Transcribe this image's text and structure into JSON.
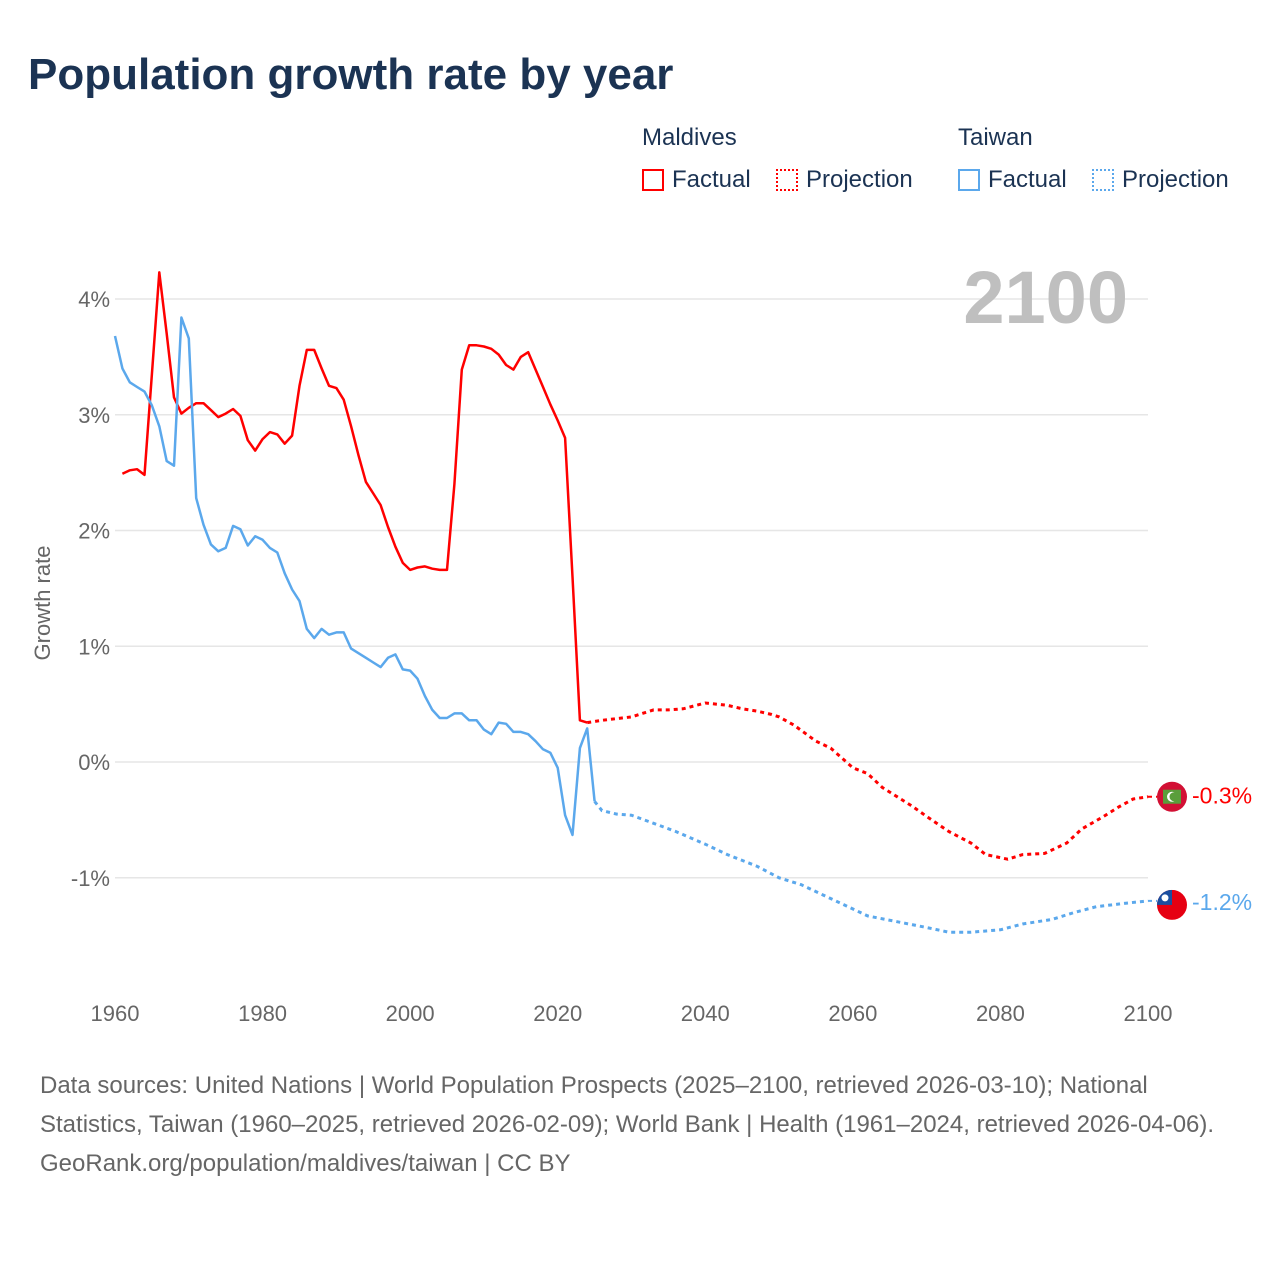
{
  "chart_data": {
    "type": "line",
    "title": "Population growth rate by year",
    "xlabel": "",
    "ylabel": "Growth rate",
    "xlim": [
      1960,
      2100
    ],
    "ylim": [
      -2,
      4.5
    ],
    "x_ticks": [
      "1960",
      "1980",
      "2000",
      "2020",
      "2040",
      "2060",
      "2080",
      "2100"
    ],
    "y_ticks": [
      {
        "v": 4,
        "label": "4%"
      },
      {
        "v": 3,
        "label": "3%"
      },
      {
        "v": 2,
        "label": "2%"
      },
      {
        "v": 1,
        "label": "1%"
      },
      {
        "v": 0,
        "label": "0%"
      },
      {
        "v": -1,
        "label": "-1%"
      }
    ],
    "current_year": "2100",
    "legend": {
      "placement": "top-right",
      "groups": [
        {
          "name": "Maldives",
          "factual": "Factual",
          "projection": "Projection"
        },
        {
          "name": "Taiwan",
          "factual": "Factual",
          "projection": "Projection"
        }
      ]
    },
    "series": [
      {
        "name": "Maldives",
        "color": "#ff0000",
        "end_label": "-0.3%",
        "factual": [
          [
            1961,
            2.49
          ],
          [
            1962,
            2.52
          ],
          [
            1963,
            2.53
          ],
          [
            1964,
            2.48
          ],
          [
            1965,
            3.35
          ],
          [
            1966,
            4.23
          ],
          [
            1967,
            3.7
          ],
          [
            1968,
            3.15
          ],
          [
            1969,
            3.01
          ],
          [
            1970,
            3.06
          ],
          [
            1971,
            3.1
          ],
          [
            1972,
            3.1
          ],
          [
            1973,
            3.04
          ],
          [
            1974,
            2.98
          ],
          [
            1975,
            3.01
          ],
          [
            1976,
            3.05
          ],
          [
            1977,
            2.99
          ],
          [
            1978,
            2.78
          ],
          [
            1979,
            2.69
          ],
          [
            1980,
            2.79
          ],
          [
            1981,
            2.85
          ],
          [
            1982,
            2.83
          ],
          [
            1983,
            2.75
          ],
          [
            1984,
            2.82
          ],
          [
            1985,
            3.25
          ],
          [
            1986,
            3.56
          ],
          [
            1987,
            3.56
          ],
          [
            1988,
            3.4
          ],
          [
            1989,
            3.25
          ],
          [
            1990,
            3.23
          ],
          [
            1991,
            3.13
          ],
          [
            1992,
            2.9
          ],
          [
            1993,
            2.65
          ],
          [
            1994,
            2.42
          ],
          [
            1995,
            2.32
          ],
          [
            1996,
            2.22
          ],
          [
            1997,
            2.03
          ],
          [
            1998,
            1.86
          ],
          [
            1999,
            1.72
          ],
          [
            2000,
            1.66
          ],
          [
            2001,
            1.68
          ],
          [
            2002,
            1.69
          ],
          [
            2003,
            1.67
          ],
          [
            2004,
            1.66
          ],
          [
            2005,
            1.66
          ],
          [
            2006,
            2.4
          ],
          [
            2007,
            3.39
          ],
          [
            2008,
            3.6
          ],
          [
            2009,
            3.6
          ],
          [
            2010,
            3.59
          ],
          [
            2011,
            3.57
          ],
          [
            2012,
            3.52
          ],
          [
            2013,
            3.43
          ],
          [
            2014,
            3.39
          ],
          [
            2015,
            3.5
          ],
          [
            2016,
            3.54
          ],
          [
            2017,
            3.39
          ],
          [
            2018,
            3.24
          ],
          [
            2019,
            3.09
          ],
          [
            2020,
            2.95
          ],
          [
            2021,
            2.8
          ],
          [
            2022,
            1.6
          ],
          [
            2023,
            0.36
          ],
          [
            2024,
            0.34
          ]
        ],
        "projection": [
          [
            2024,
            0.34
          ],
          [
            2026,
            0.36
          ],
          [
            2030,
            0.39
          ],
          [
            2033,
            0.45
          ],
          [
            2035,
            0.45
          ],
          [
            2037,
            0.46
          ],
          [
            2040,
            0.51
          ],
          [
            2043,
            0.49
          ],
          [
            2045,
            0.46
          ],
          [
            2047,
            0.44
          ],
          [
            2049,
            0.41
          ],
          [
            2050,
            0.39
          ],
          [
            2052,
            0.32
          ],
          [
            2055,
            0.18
          ],
          [
            2057,
            0.12
          ],
          [
            2060,
            -0.05
          ],
          [
            2062,
            -0.1
          ],
          [
            2064,
            -0.22
          ],
          [
            2066,
            -0.3
          ],
          [
            2068,
            -0.38
          ],
          [
            2070,
            -0.47
          ],
          [
            2073,
            -0.6
          ],
          [
            2076,
            -0.7
          ],
          [
            2078,
            -0.8
          ],
          [
            2081,
            -0.84
          ],
          [
            2083,
            -0.8
          ],
          [
            2086,
            -0.79
          ],
          [
            2089,
            -0.7
          ],
          [
            2091,
            -0.58
          ],
          [
            2094,
            -0.47
          ],
          [
            2096,
            -0.39
          ],
          [
            2098,
            -0.32
          ],
          [
            2100,
            -0.3
          ]
        ]
      },
      {
        "name": "Taiwan",
        "color": "#5ba8ec",
        "end_label": "-1.2%",
        "factual": [
          [
            1960,
            3.68
          ],
          [
            1961,
            3.4
          ],
          [
            1962,
            3.28
          ],
          [
            1963,
            3.24
          ],
          [
            1964,
            3.2
          ],
          [
            1965,
            3.08
          ],
          [
            1966,
            2.9
          ],
          [
            1967,
            2.6
          ],
          [
            1968,
            2.56
          ],
          [
            1969,
            3.84
          ],
          [
            1970,
            3.66
          ],
          [
            1971,
            2.28
          ],
          [
            1972,
            2.05
          ],
          [
            1973,
            1.88
          ],
          [
            1974,
            1.82
          ],
          [
            1975,
            1.85
          ],
          [
            1976,
            2.04
          ],
          [
            1977,
            2.01
          ],
          [
            1978,
            1.87
          ],
          [
            1979,
            1.95
          ],
          [
            1980,
            1.92
          ],
          [
            1981,
            1.85
          ],
          [
            1982,
            1.81
          ],
          [
            1983,
            1.63
          ],
          [
            1984,
            1.49
          ],
          [
            1985,
            1.39
          ],
          [
            1986,
            1.15
          ],
          [
            1987,
            1.07
          ],
          [
            1988,
            1.15
          ],
          [
            1989,
            1.1
          ],
          [
            1990,
            1.12
          ],
          [
            1991,
            1.12
          ],
          [
            1992,
            0.98
          ],
          [
            1993,
            0.94
          ],
          [
            1994,
            0.9
          ],
          [
            1995,
            0.86
          ],
          [
            1996,
            0.82
          ],
          [
            1997,
            0.9
          ],
          [
            1998,
            0.93
          ],
          [
            1999,
            0.8
          ],
          [
            2000,
            0.79
          ],
          [
            2001,
            0.72
          ],
          [
            2002,
            0.57
          ],
          [
            2003,
            0.45
          ],
          [
            2004,
            0.38
          ],
          [
            2005,
            0.38
          ],
          [
            2006,
            0.42
          ],
          [
            2007,
            0.42
          ],
          [
            2008,
            0.36
          ],
          [
            2009,
            0.36
          ],
          [
            2010,
            0.28
          ],
          [
            2011,
            0.24
          ],
          [
            2012,
            0.34
          ],
          [
            2013,
            0.33
          ],
          [
            2014,
            0.26
          ],
          [
            2015,
            0.26
          ],
          [
            2016,
            0.24
          ],
          [
            2017,
            0.18
          ],
          [
            2018,
            0.11
          ],
          [
            2019,
            0.08
          ],
          [
            2020,
            -0.05
          ],
          [
            2021,
            -0.46
          ],
          [
            2022,
            -0.63
          ],
          [
            2023,
            0.12
          ],
          [
            2024,
            0.29
          ],
          [
            2025,
            -0.34
          ]
        ],
        "projection": [
          [
            2025,
            -0.34
          ],
          [
            2026,
            -0.42
          ],
          [
            2028,
            -0.45
          ],
          [
            2030,
            -0.46
          ],
          [
            2033,
            -0.53
          ],
          [
            2036,
            -0.6
          ],
          [
            2040,
            -0.71
          ],
          [
            2043,
            -0.8
          ],
          [
            2047,
            -0.9
          ],
          [
            2050,
            -1.0
          ],
          [
            2053,
            -1.06
          ],
          [
            2056,
            -1.15
          ],
          [
            2059,
            -1.24
          ],
          [
            2062,
            -1.33
          ],
          [
            2066,
            -1.38
          ],
          [
            2070,
            -1.43
          ],
          [
            2073,
            -1.47
          ],
          [
            2076,
            -1.47
          ],
          [
            2080,
            -1.45
          ],
          [
            2083,
            -1.4
          ],
          [
            2087,
            -1.36
          ],
          [
            2090,
            -1.3
          ],
          [
            2093,
            -1.25
          ],
          [
            2097,
            -1.22
          ],
          [
            2100,
            -1.2
          ]
        ]
      }
    ]
  },
  "footer": {
    "sources": "Data sources: United Nations | World Population Prospects (2025–2100, retrieved 2026-03-10); National Statistics, Taiwan (1960–2025, retrieved 2026-02-09); World Bank | Health (1961–2024, retrieved 2026-04-06).",
    "credit": "GeoRank.org/population/maldives/taiwan | CC BY"
  }
}
